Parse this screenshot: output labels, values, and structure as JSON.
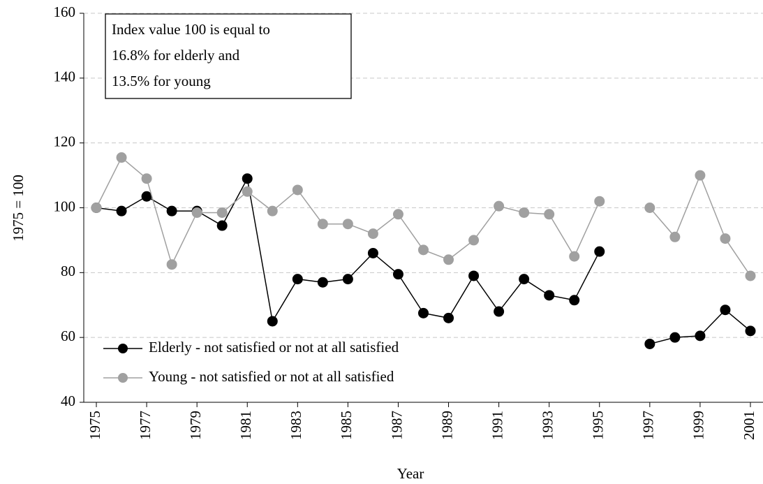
{
  "chart_data": {
    "type": "line",
    "xlabel": "Year",
    "ylabel": "1975 = 100",
    "annotation": [
      "Index value 100 is equal to",
      "16.8%  for elderly and",
      "13.5% for young"
    ],
    "x": [
      1975,
      1976,
      1977,
      1978,
      1979,
      1980,
      1981,
      1982,
      1983,
      1984,
      1985,
      1986,
      1987,
      1988,
      1989,
      1990,
      1991,
      1992,
      1993,
      1994,
      1995,
      1996,
      1997,
      1998,
      1999,
      2000,
      2001
    ],
    "xlim": [
      1974.5,
      2001.5
    ],
    "xticks": [
      1975,
      1977,
      1979,
      1981,
      1983,
      1985,
      1987,
      1989,
      1991,
      1993,
      1995,
      1997,
      1999,
      2001
    ],
    "ylim": [
      40,
      160
    ],
    "yticks": [
      40,
      60,
      80,
      100,
      120,
      140,
      160
    ],
    "grid": true,
    "legend": "lower left",
    "series": [
      {
        "name": "Elderly - not satisfied or not at all satisfied",
        "color": "#000000",
        "values": [
          100,
          99,
          103.5,
          99,
          99,
          94.5,
          109,
          65,
          78,
          77,
          78,
          86,
          79.5,
          67.5,
          66,
          79,
          68,
          78,
          73,
          71.5,
          86.5,
          null,
          58,
          60,
          60.5,
          68.5,
          62
        ]
      },
      {
        "name": "Young - not satisfied or not at all satisfied",
        "color": "#a0a0a0",
        "values": [
          100,
          115.5,
          109,
          82.5,
          98.5,
          98.5,
          105,
          99,
          105.5,
          95,
          95,
          92,
          98,
          87,
          84,
          90,
          100.5,
          98.5,
          98,
          85,
          102,
          null,
          100,
          91,
          110,
          90.5,
          79
        ]
      }
    ]
  }
}
